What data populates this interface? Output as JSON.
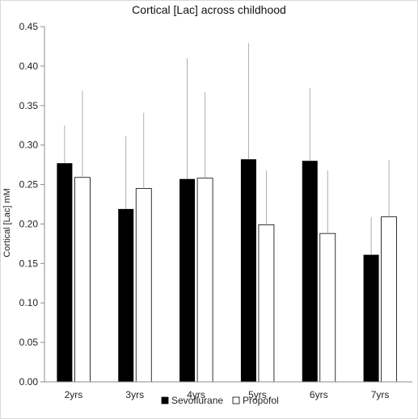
{
  "chart_data": {
    "type": "bar",
    "title": "Cortical [Lac] across childhood",
    "ylabel": "Cortical [Lac] mM",
    "xlabel": "",
    "categories": [
      "2yrs",
      "3yrs",
      "4yrs",
      "5yrs",
      "6yrs",
      "7yrs"
    ],
    "series": [
      {
        "name": "Sevoflurane",
        "color": "#000000",
        "values": [
          0.277,
          0.219,
          0.257,
          0.282,
          0.28,
          0.161
        ],
        "error_upper": [
          0.325,
          0.311,
          0.41,
          0.429,
          0.372,
          0.209
        ]
      },
      {
        "name": "Propofol",
        "color": "#ffffff",
        "values": [
          0.259,
          0.245,
          0.258,
          0.199,
          0.188,
          0.209
        ],
        "error_upper": [
          0.369,
          0.341,
          0.367,
          0.268,
          0.268,
          0.281
        ]
      }
    ],
    "ylim": [
      0,
      0.45
    ],
    "yticks": [
      "0.00",
      "0.05",
      "0.10",
      "0.15",
      "0.20",
      "0.25",
      "0.30",
      "0.35",
      "0.40",
      "0.45"
    ],
    "grid": false,
    "legend_position": "bottom"
  }
}
